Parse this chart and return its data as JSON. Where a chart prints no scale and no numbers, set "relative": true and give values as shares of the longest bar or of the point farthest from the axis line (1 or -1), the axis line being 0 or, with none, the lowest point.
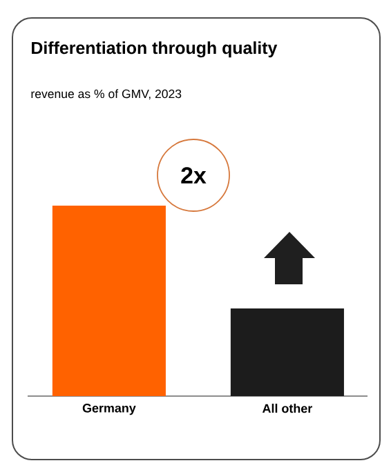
{
  "chart_data": {
    "type": "bar",
    "title": "Differentiation through quality",
    "subtitle": "revenue as % of GMV, 2023",
    "categories": [
      "Germany",
      "All other"
    ],
    "values": [
      1,
      0.46
    ],
    "colors": [
      "#ff6200",
      "#1c1c1c"
    ],
    "relative": true,
    "annotations": [
      "2x"
    ]
  }
}
